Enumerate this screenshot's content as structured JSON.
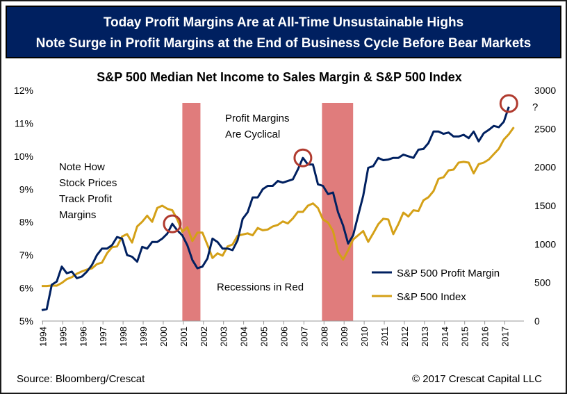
{
  "header": {
    "line1": "Today Profit Margins Are at All-Time Unsustainable Highs",
    "line2": "Note Surge in Profit Margins at the End of Business Cycle Before Bear Markets"
  },
  "chart_data": {
    "type": "line",
    "title": "S&P 500 Median Net Income to Sales Margin & S&P 500 Index",
    "x_ticks": [
      "1994",
      "1995",
      "1996",
      "1997",
      "1998",
      "1999",
      "2000",
      "2001",
      "2002",
      "2003",
      "2004",
      "2005",
      "2006",
      "2007",
      "2008",
      "2009",
      "2010",
      "2011",
      "2012",
      "2013",
      "2014",
      "2015",
      "2016",
      "2017"
    ],
    "xlim": [
      1994,
      2018
    ],
    "y_left": {
      "ticks": [
        "5%",
        "6%",
        "7%",
        "8%",
        "9%",
        "10%",
        "11%",
        "12%"
      ],
      "lim": [
        5,
        12
      ]
    },
    "y_right": {
      "ticks": [
        "0",
        "500",
        "1000",
        "1500",
        "2000",
        "2500",
        "3000"
      ],
      "lim": [
        0,
        3000
      ]
    },
    "recessions": [
      [
        2001.0,
        2001.9
      ],
      [
        2007.95,
        2009.5
      ]
    ],
    "series": [
      {
        "name": "S&P 500 Profit Margin",
        "axis": "left",
        "color": "#002060",
        "points": [
          [
            1994.0,
            5.33
          ],
          [
            1994.25,
            5.36
          ],
          [
            1994.5,
            6.1
          ],
          [
            1994.75,
            6.2
          ],
          [
            1995.0,
            6.65
          ],
          [
            1995.25,
            6.45
          ],
          [
            1995.5,
            6.5
          ],
          [
            1995.75,
            6.3
          ],
          [
            1996.0,
            6.35
          ],
          [
            1996.25,
            6.5
          ],
          [
            1996.5,
            6.7
          ],
          [
            1996.75,
            7.0
          ],
          [
            1997.0,
            7.2
          ],
          [
            1997.25,
            7.2
          ],
          [
            1997.5,
            7.3
          ],
          [
            1997.75,
            7.55
          ],
          [
            1998.0,
            7.5
          ],
          [
            1998.25,
            7.0
          ],
          [
            1998.5,
            6.95
          ],
          [
            1998.75,
            6.8
          ],
          [
            1999.0,
            7.25
          ],
          [
            1999.25,
            7.2
          ],
          [
            1999.5,
            7.4
          ],
          [
            1999.75,
            7.4
          ],
          [
            2000.0,
            7.5
          ],
          [
            2000.25,
            7.65
          ],
          [
            2000.5,
            7.95
          ],
          [
            2000.75,
            7.75
          ],
          [
            2001.0,
            7.6
          ],
          [
            2001.25,
            7.3
          ],
          [
            2001.5,
            6.85
          ],
          [
            2001.75,
            6.6
          ],
          [
            2002.0,
            6.65
          ],
          [
            2002.25,
            6.9
          ],
          [
            2002.5,
            7.5
          ],
          [
            2002.75,
            7.4
          ],
          [
            2003.0,
            7.2
          ],
          [
            2003.25,
            7.2
          ],
          [
            2003.5,
            7.15
          ],
          [
            2003.75,
            7.45
          ],
          [
            2004.0,
            8.1
          ],
          [
            2004.25,
            8.3
          ],
          [
            2004.5,
            8.75
          ],
          [
            2004.75,
            8.75
          ],
          [
            2005.0,
            9.0
          ],
          [
            2005.25,
            9.1
          ],
          [
            2005.5,
            9.1
          ],
          [
            2005.75,
            9.25
          ],
          [
            2006.0,
            9.2
          ],
          [
            2006.25,
            9.25
          ],
          [
            2006.5,
            9.3
          ],
          [
            2006.75,
            9.6
          ],
          [
            2007.0,
            9.95
          ],
          [
            2007.25,
            9.75
          ],
          [
            2007.5,
            9.75
          ],
          [
            2007.75,
            9.15
          ],
          [
            2008.0,
            9.1
          ],
          [
            2008.25,
            8.85
          ],
          [
            2008.5,
            8.9
          ],
          [
            2008.75,
            8.3
          ],
          [
            2009.0,
            7.9
          ],
          [
            2009.25,
            7.35
          ],
          [
            2009.5,
            7.6
          ],
          [
            2009.75,
            8.2
          ],
          [
            2010.0,
            8.8
          ],
          [
            2010.25,
            9.65
          ],
          [
            2010.5,
            9.7
          ],
          [
            2010.75,
            9.95
          ],
          [
            2011.0,
            9.88
          ],
          [
            2011.25,
            9.9
          ],
          [
            2011.5,
            9.95
          ],
          [
            2011.75,
            9.95
          ],
          [
            2012.0,
            10.05
          ],
          [
            2012.25,
            10.0
          ],
          [
            2012.5,
            9.95
          ],
          [
            2012.75,
            10.2
          ],
          [
            2013.0,
            10.22
          ],
          [
            2013.25,
            10.4
          ],
          [
            2013.5,
            10.75
          ],
          [
            2013.75,
            10.75
          ],
          [
            2014.0,
            10.68
          ],
          [
            2014.25,
            10.72
          ],
          [
            2014.5,
            10.6
          ],
          [
            2014.75,
            10.6
          ],
          [
            2015.0,
            10.65
          ],
          [
            2015.25,
            10.55
          ],
          [
            2015.5,
            10.75
          ],
          [
            2015.75,
            10.45
          ],
          [
            2016.0,
            10.7
          ],
          [
            2016.25,
            10.8
          ],
          [
            2016.5,
            10.92
          ],
          [
            2016.75,
            10.88
          ],
          [
            2017.0,
            11.05
          ],
          [
            2017.25,
            11.5
          ]
        ]
      },
      {
        "name": "S&P 500 Index",
        "axis": "right",
        "color": "#D4A017",
        "points": [
          [
            1994.0,
            455
          ],
          [
            1994.25,
            455
          ],
          [
            1994.5,
            462
          ],
          [
            1994.75,
            460
          ],
          [
            1995.0,
            495
          ],
          [
            1995.25,
            545
          ],
          [
            1995.5,
            570
          ],
          [
            1995.75,
            615
          ],
          [
            1996.0,
            645
          ],
          [
            1996.25,
            670
          ],
          [
            1996.5,
            685
          ],
          [
            1996.75,
            740
          ],
          [
            1997.0,
            760
          ],
          [
            1997.25,
            880
          ],
          [
            1997.5,
            960
          ],
          [
            1997.75,
            970
          ],
          [
            1998.0,
            1100
          ],
          [
            1998.25,
            1130
          ],
          [
            1998.5,
            1020
          ],
          [
            1998.75,
            1230
          ],
          [
            1999.0,
            1290
          ],
          [
            1999.25,
            1370
          ],
          [
            1999.5,
            1290
          ],
          [
            1999.75,
            1470
          ],
          [
            2000.0,
            1500
          ],
          [
            2000.25,
            1460
          ],
          [
            2000.5,
            1440
          ],
          [
            2000.75,
            1320
          ],
          [
            2001.0,
            1160
          ],
          [
            2001.25,
            1220
          ],
          [
            2001.5,
            1040
          ],
          [
            2001.75,
            1150
          ],
          [
            2002.0,
            1150
          ],
          [
            2002.25,
            990
          ],
          [
            2002.5,
            820
          ],
          [
            2002.75,
            880
          ],
          [
            2003.0,
            850
          ],
          [
            2003.25,
            970
          ],
          [
            2003.5,
            995
          ],
          [
            2003.75,
            1110
          ],
          [
            2004.0,
            1125
          ],
          [
            2004.25,
            1140
          ],
          [
            2004.5,
            1115
          ],
          [
            2004.75,
            1210
          ],
          [
            2005.0,
            1180
          ],
          [
            2005.25,
            1190
          ],
          [
            2005.5,
            1230
          ],
          [
            2005.75,
            1250
          ],
          [
            2006.0,
            1295
          ],
          [
            2006.25,
            1270
          ],
          [
            2006.5,
            1335
          ],
          [
            2006.75,
            1420
          ],
          [
            2007.0,
            1420
          ],
          [
            2007.25,
            1500
          ],
          [
            2007.5,
            1530
          ],
          [
            2007.75,
            1470
          ],
          [
            2008.0,
            1320
          ],
          [
            2008.25,
            1280
          ],
          [
            2008.5,
            1170
          ],
          [
            2008.75,
            900
          ],
          [
            2009.0,
            800
          ],
          [
            2009.25,
            920
          ],
          [
            2009.5,
            1060
          ],
          [
            2009.75,
            1115
          ],
          [
            2010.0,
            1170
          ],
          [
            2010.25,
            1030
          ],
          [
            2010.5,
            1140
          ],
          [
            2010.75,
            1260
          ],
          [
            2011.0,
            1330
          ],
          [
            2011.25,
            1320
          ],
          [
            2011.5,
            1130
          ],
          [
            2011.75,
            1260
          ],
          [
            2012.0,
            1410
          ],
          [
            2012.25,
            1360
          ],
          [
            2012.5,
            1440
          ],
          [
            2012.75,
            1430
          ],
          [
            2013.0,
            1570
          ],
          [
            2013.25,
            1610
          ],
          [
            2013.5,
            1690
          ],
          [
            2013.75,
            1850
          ],
          [
            2014.0,
            1870
          ],
          [
            2014.25,
            1960
          ],
          [
            2014.5,
            1970
          ],
          [
            2014.75,
            2060
          ],
          [
            2015.0,
            2070
          ],
          [
            2015.25,
            2060
          ],
          [
            2015.5,
            1920
          ],
          [
            2015.75,
            2040
          ],
          [
            2016.0,
            2060
          ],
          [
            2016.25,
            2100
          ],
          [
            2016.5,
            2170
          ],
          [
            2016.75,
            2240
          ],
          [
            2017.0,
            2360
          ],
          [
            2017.25,
            2430
          ],
          [
            2017.5,
            2520
          ]
        ]
      }
    ],
    "annotations": {
      "profit_cyclical": [
        "Profit Margins",
        "Are Cyclical"
      ],
      "note_track": [
        "Note How",
        "Stock Prices",
        "Track Profit",
        "Margins"
      ],
      "recessions": "Recessions in Red",
      "question": "?"
    },
    "circles": [
      [
        2000.5,
        7.95
      ],
      [
        2007.0,
        9.95
      ],
      [
        2017.25,
        11.6
      ]
    ],
    "legend_placement": "right-middle"
  },
  "footer": {
    "source": "Source: Bloomberg/Crescat",
    "copyright": "© 2017 Crescat Capital LLC"
  }
}
